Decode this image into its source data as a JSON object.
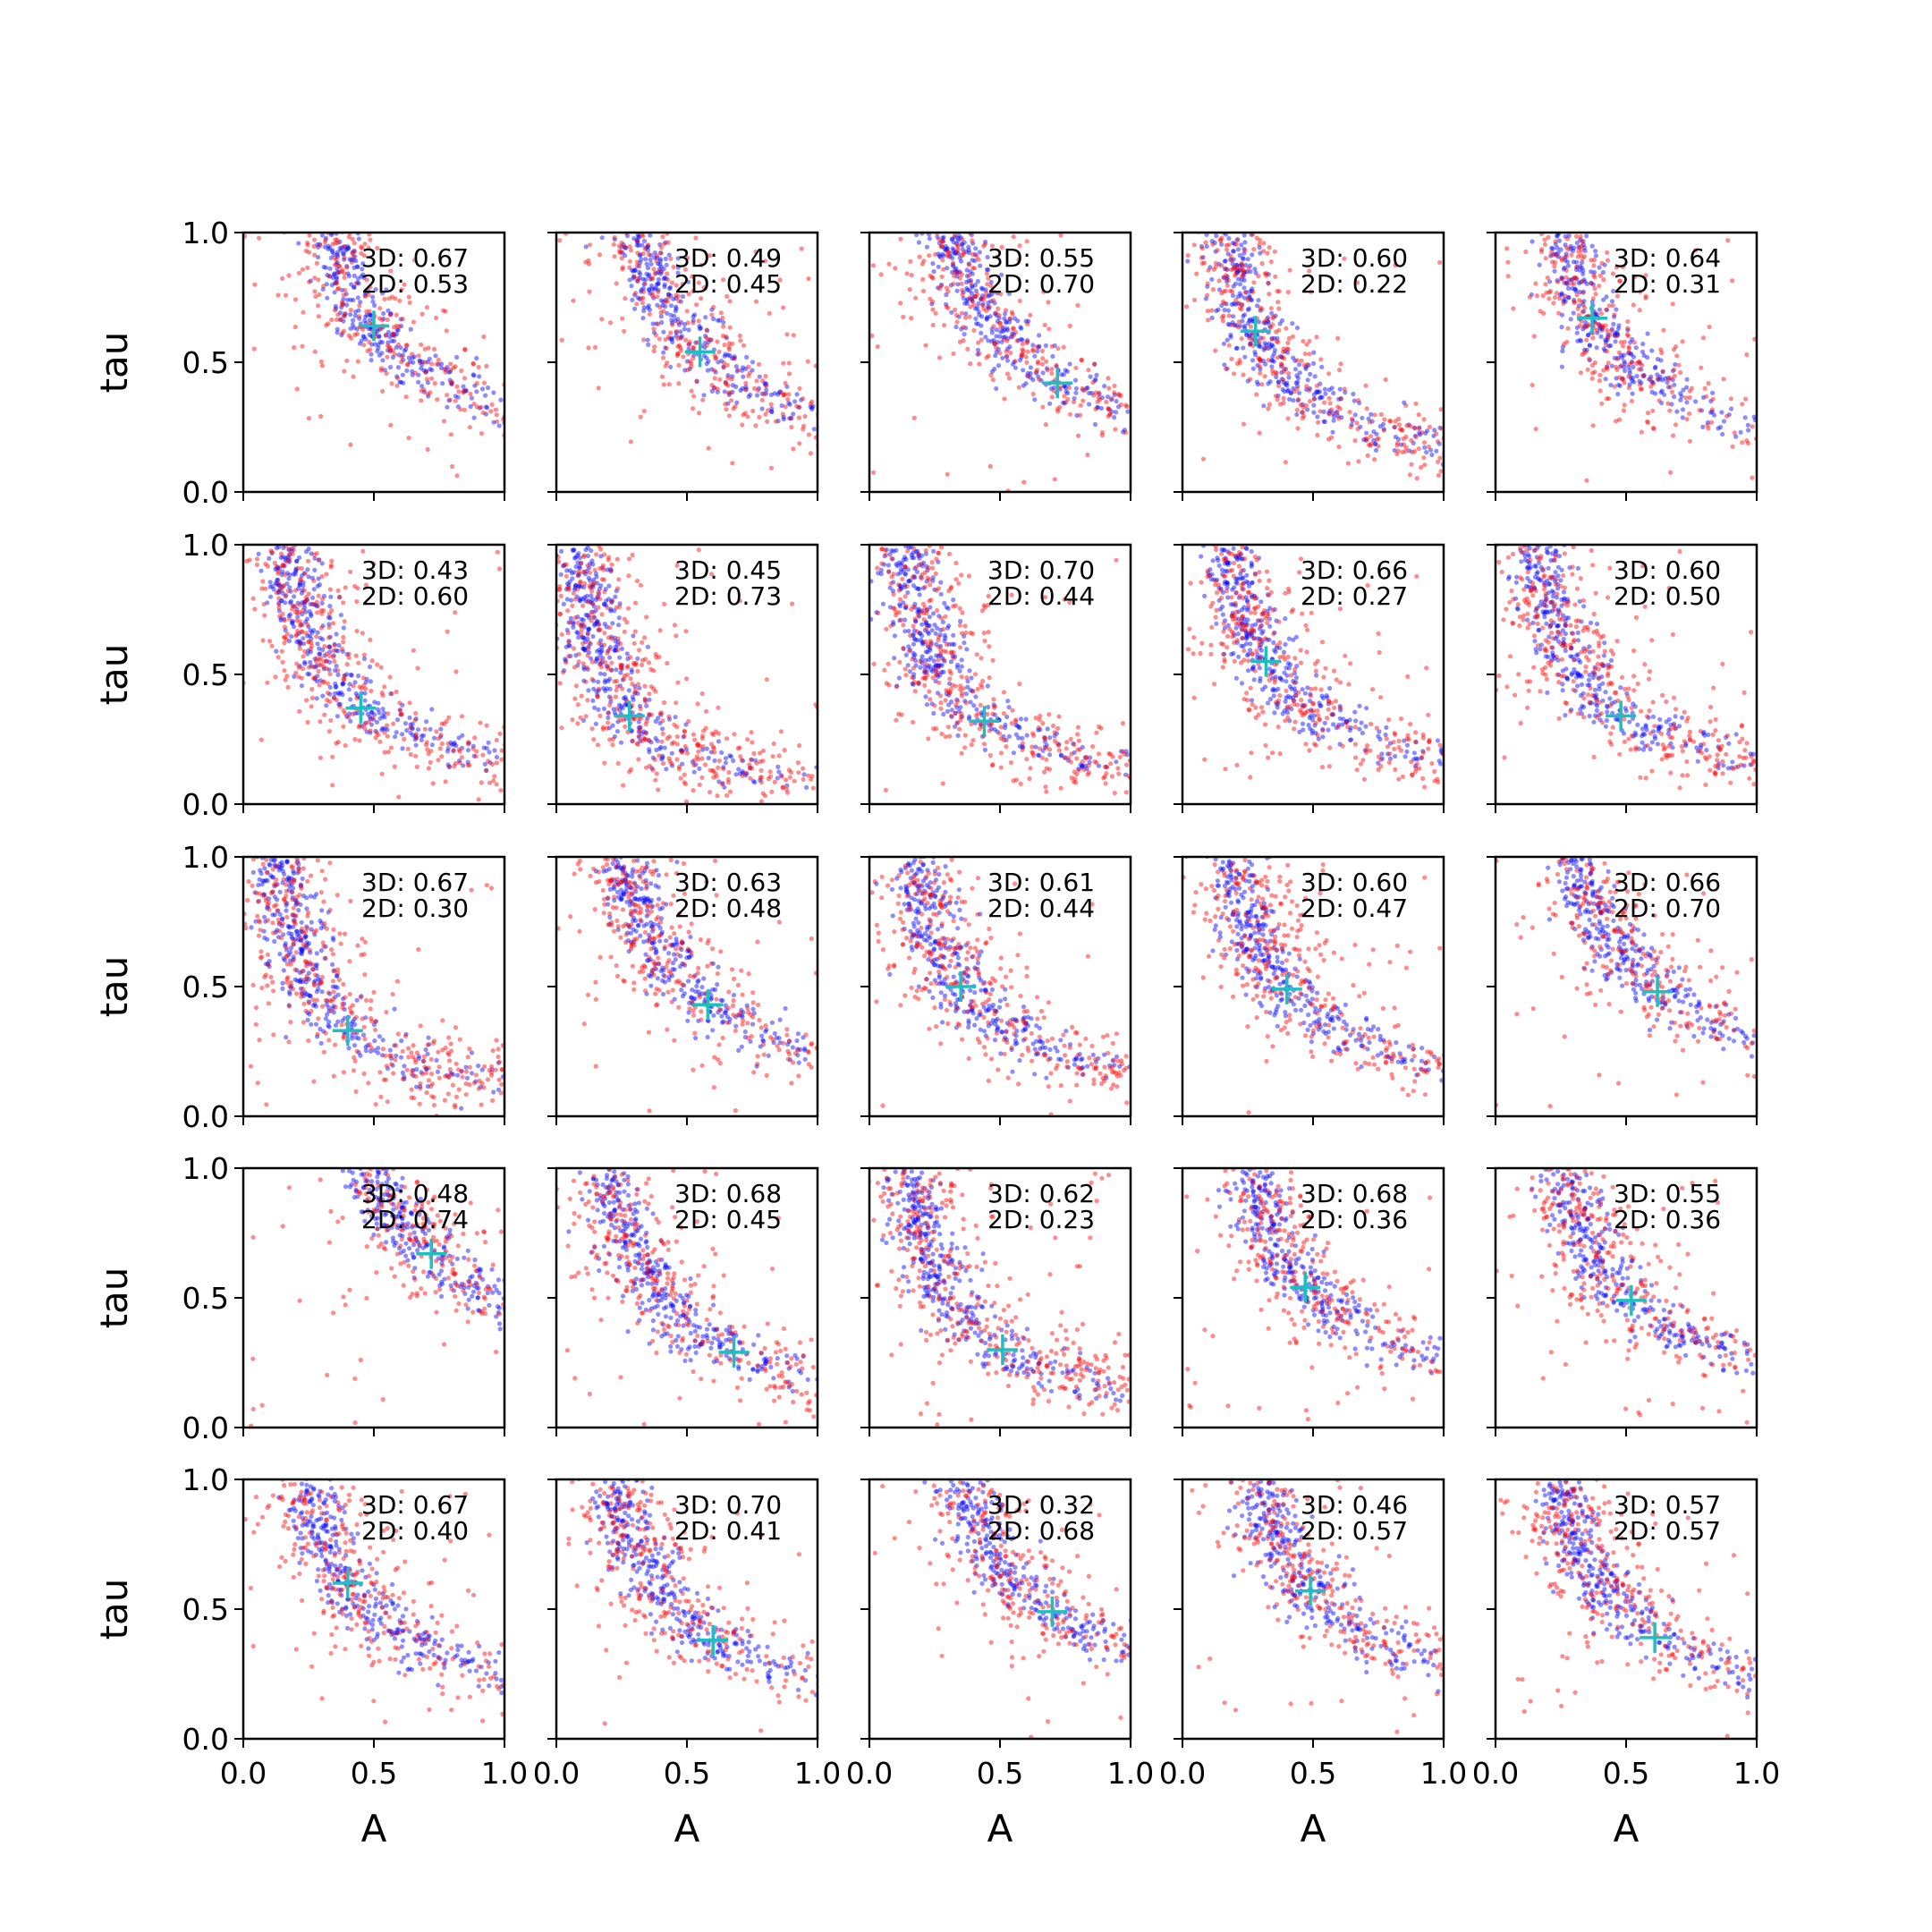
{
  "chart_data": {
    "type": "scatter",
    "layout": "5x5 grid of scatter subplots",
    "xlabel": "A",
    "ylabel": "tau",
    "xlim": [
      0.0,
      1.0
    ],
    "ylim": [
      0.0,
      1.0
    ],
    "xticks": [
      "0.0",
      "0.5",
      "1.0"
    ],
    "yticks": [
      "0.0",
      "0.5",
      "1.0"
    ],
    "series_colors": {
      "three_d": "#0000ff",
      "two_d": "#ff0000",
      "marker": "#1fbfbf"
    },
    "annotation_prefix": {
      "three_d": "3D: ",
      "two_d": "2D: "
    },
    "panels": [
      {
        "score_3d": "0.67",
        "score_2d": "0.53",
        "marker": [
          0.5,
          0.64
        ],
        "spread": 0.35
      },
      {
        "score_3d": "0.49",
        "score_2d": "0.45",
        "marker": [
          0.55,
          0.54
        ],
        "spread": 0.3
      },
      {
        "score_3d": "0.55",
        "score_2d": "0.70",
        "marker": [
          0.72,
          0.42
        ],
        "spread": 0.33
      },
      {
        "score_3d": "0.60",
        "score_2d": "0.22",
        "marker": [
          0.28,
          0.62
        ],
        "spread": 0.22
      },
      {
        "score_3d": "0.64",
        "score_2d": "0.31",
        "marker": [
          0.37,
          0.67
        ],
        "spread": 0.25
      },
      {
        "score_3d": "0.43",
        "score_2d": "0.60",
        "marker": [
          0.45,
          0.37
        ],
        "spread": 0.36
      },
      {
        "score_3d": "0.45",
        "score_2d": "0.73",
        "marker": [
          0.28,
          0.34
        ],
        "spread": 0.3
      },
      {
        "score_3d": "0.70",
        "score_2d": "0.44",
        "marker": [
          0.44,
          0.32
        ],
        "spread": 0.3
      },
      {
        "score_3d": "0.66",
        "score_2d": "0.27",
        "marker": [
          0.32,
          0.55
        ],
        "spread": 0.26
      },
      {
        "score_3d": "0.60",
        "score_2d": "0.50",
        "marker": [
          0.48,
          0.34
        ],
        "spread": 0.3
      },
      {
        "score_3d": "0.67",
        "score_2d": "0.30",
        "marker": [
          0.4,
          0.33
        ],
        "spread": 0.2
      },
      {
        "score_3d": "0.63",
        "score_2d": "0.48",
        "marker": [
          0.58,
          0.43
        ],
        "spread": 0.3
      },
      {
        "score_3d": "0.61",
        "score_2d": "0.44",
        "marker": [
          0.35,
          0.5
        ],
        "spread": 0.28
      },
      {
        "score_3d": "0.60",
        "score_2d": "0.47",
        "marker": [
          0.4,
          0.49
        ],
        "spread": 0.33
      },
      {
        "score_3d": "0.66",
        "score_2d": "0.70",
        "marker": [
          0.62,
          0.48
        ],
        "spread": 0.36
      },
      {
        "score_3d": "0.48",
        "score_2d": "0.74",
        "marker": [
          0.72,
          0.67
        ],
        "spread": 0.42
      },
      {
        "score_3d": "0.68",
        "score_2d": "0.45",
        "marker": [
          0.68,
          0.29
        ],
        "spread": 0.35
      },
      {
        "score_3d": "0.62",
        "score_2d": "0.23",
        "marker": [
          0.51,
          0.3
        ],
        "spread": 0.32
      },
      {
        "score_3d": "0.68",
        "score_2d": "0.36",
        "marker": [
          0.47,
          0.54
        ],
        "spread": 0.3
      },
      {
        "score_3d": "0.55",
        "score_2d": "0.36",
        "marker": [
          0.52,
          0.49
        ],
        "spread": 0.28
      },
      {
        "score_3d": "0.67",
        "score_2d": "0.40",
        "marker": [
          0.4,
          0.6
        ],
        "spread": 0.3
      },
      {
        "score_3d": "0.70",
        "score_2d": "0.41",
        "marker": [
          0.6,
          0.38
        ],
        "spread": 0.35
      },
      {
        "score_3d": "0.32",
        "score_2d": "0.68",
        "marker": [
          0.7,
          0.49
        ],
        "spread": 0.4
      },
      {
        "score_3d": "0.46",
        "score_2d": "0.57",
        "marker": [
          0.49,
          0.57
        ],
        "spread": 0.3
      },
      {
        "score_3d": "0.57",
        "score_2d": "0.57",
        "marker": [
          0.61,
          0.39
        ],
        "spread": 0.36
      }
    ]
  }
}
